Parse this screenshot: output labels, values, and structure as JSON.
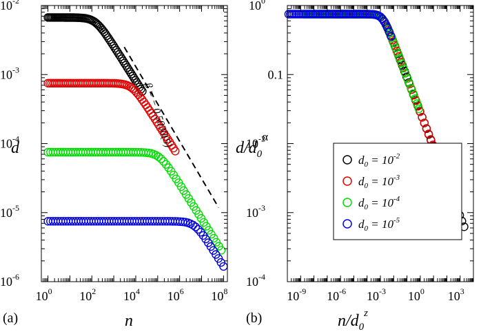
{
  "chart_data": [
    {
      "type": "scatter",
      "panel_label": "(a)",
      "xlabel": "n",
      "ylabel": "d",
      "xscale": "log",
      "yscale": "log",
      "xlim": [
        0.5,
        150000000.0
      ],
      "ylim": [
        1e-06,
        0.01
      ],
      "x_ticks": [
        {
          "value": 1,
          "base": "10",
          "exp": "0"
        },
        {
          "value": 100,
          "base": "10",
          "exp": "2"
        },
        {
          "value": 10000,
          "base": "10",
          "exp": "4"
        },
        {
          "value": 1000000,
          "base": "10",
          "exp": "6"
        },
        {
          "value": 100000000,
          "base": "10",
          "exp": "8"
        }
      ],
      "y_ticks": [
        {
          "value": 1e-06,
          "base": "10",
          "exp": "-6"
        },
        {
          "value": 1e-05,
          "base": "10",
          "exp": "-5"
        },
        {
          "value": 0.0001,
          "base": "10",
          "exp": "-4"
        },
        {
          "value": 0.001,
          "base": "10",
          "exp": "-3"
        },
        {
          "value": 0.01,
          "base": "10",
          "exp": "-2"
        }
      ],
      "series": [
        {
          "name": "d0 = 10^-2",
          "color": "#000000",
          "d0": 0.0067,
          "n_c": 150,
          "log_n_min": 0,
          "log_n_max": 4.3
        },
        {
          "name": "d0 = 10^-3",
          "color": "#e00000",
          "d0": 0.00075,
          "n_c": 7000,
          "log_n_min": 0,
          "log_n_max": 5.8
        },
        {
          "name": "d0 = 10^-4",
          "color": "#00dd00",
          "d0": 7.5e-05,
          "n_c": 120000,
          "log_n_min": 0,
          "log_n_max": 7.9
        },
        {
          "name": "d0 = 10^-5",
          "color": "#0000e0",
          "d0": 7.5e-06,
          "n_c": 5000000,
          "log_n_min": 0,
          "log_n_max": 8.0
        }
      ],
      "guide_line": {
        "slope": -0.503,
        "x": [
          3000,
          60000000
        ],
        "y": [
          0.0025,
          1.18e-05
        ],
        "color": "#000000",
        "style": "dashed"
      },
      "annotation": "β = − 0.5030(5)"
    },
    {
      "type": "scatter",
      "panel_label": "(b)",
      "xlabel": "n/d0^z",
      "ylabel": "d/d0^α",
      "xscale": "log",
      "yscale": "log",
      "xlim": [
        1e-10,
        10000.0
      ],
      "ylim": [
        0.0001,
        1
      ],
      "x_ticks": [
        {
          "value": 1e-09,
          "base": "10",
          "exp": "-9"
        },
        {
          "value": 1e-06,
          "base": "10",
          "exp": "-6"
        },
        {
          "value": 0.001,
          "base": "10",
          "exp": "-3"
        },
        {
          "value": 1,
          "base": "10",
          "exp": "0"
        },
        {
          "value": 1000,
          "base": "10",
          "exp": "3"
        }
      ],
      "y_ticks": [
        {
          "value": 0.0001,
          "label": "10",
          "exp": "-4"
        },
        {
          "value": 0.001,
          "label": "10",
          "exp": "-3"
        },
        {
          "value": 0.01,
          "label": "10",
          "exp": "-2"
        },
        {
          "value": 0.1,
          "label": "0.1",
          "exp": ""
        },
        {
          "value": 1,
          "label": "10",
          "exp": "0"
        }
      ],
      "collapse": {
        "plateau": 0.75,
        "u_c": 0.0015,
        "slope": -0.503
      },
      "series": [
        {
          "name": "d0 = 10^-2",
          "color": "#000000",
          "log_u_min": -6.5,
          "log_u_max": 3.3
        },
        {
          "name": "d0 = 10^-3",
          "color": "#e00000",
          "log_u_min": -7.5,
          "log_u_max": 1.9
        },
        {
          "name": "d0 = 10^-4",
          "color": "#00dd00",
          "log_u_min": -8.7,
          "log_u_max": -0.1
        },
        {
          "name": "d0 = 10^-5",
          "color": "#0000e0",
          "log_u_min": -9.9,
          "log_u_max": -2.2
        }
      ],
      "legend": {
        "position": "center-right",
        "entries": [
          {
            "text": "d0 = 10",
            "sub": "0",
            "exp": "-2",
            "color": "#000000"
          },
          {
            "text": "d0 = 10",
            "sub": "0",
            "exp": "-3",
            "color": "#e00000"
          },
          {
            "text": "d0 = 10",
            "sub": "0",
            "exp": "-4",
            "color": "#00dd00"
          },
          {
            "text": "d0 = 10",
            "sub": "0",
            "exp": "-5",
            "color": "#0000e0"
          }
        ]
      }
    }
  ]
}
